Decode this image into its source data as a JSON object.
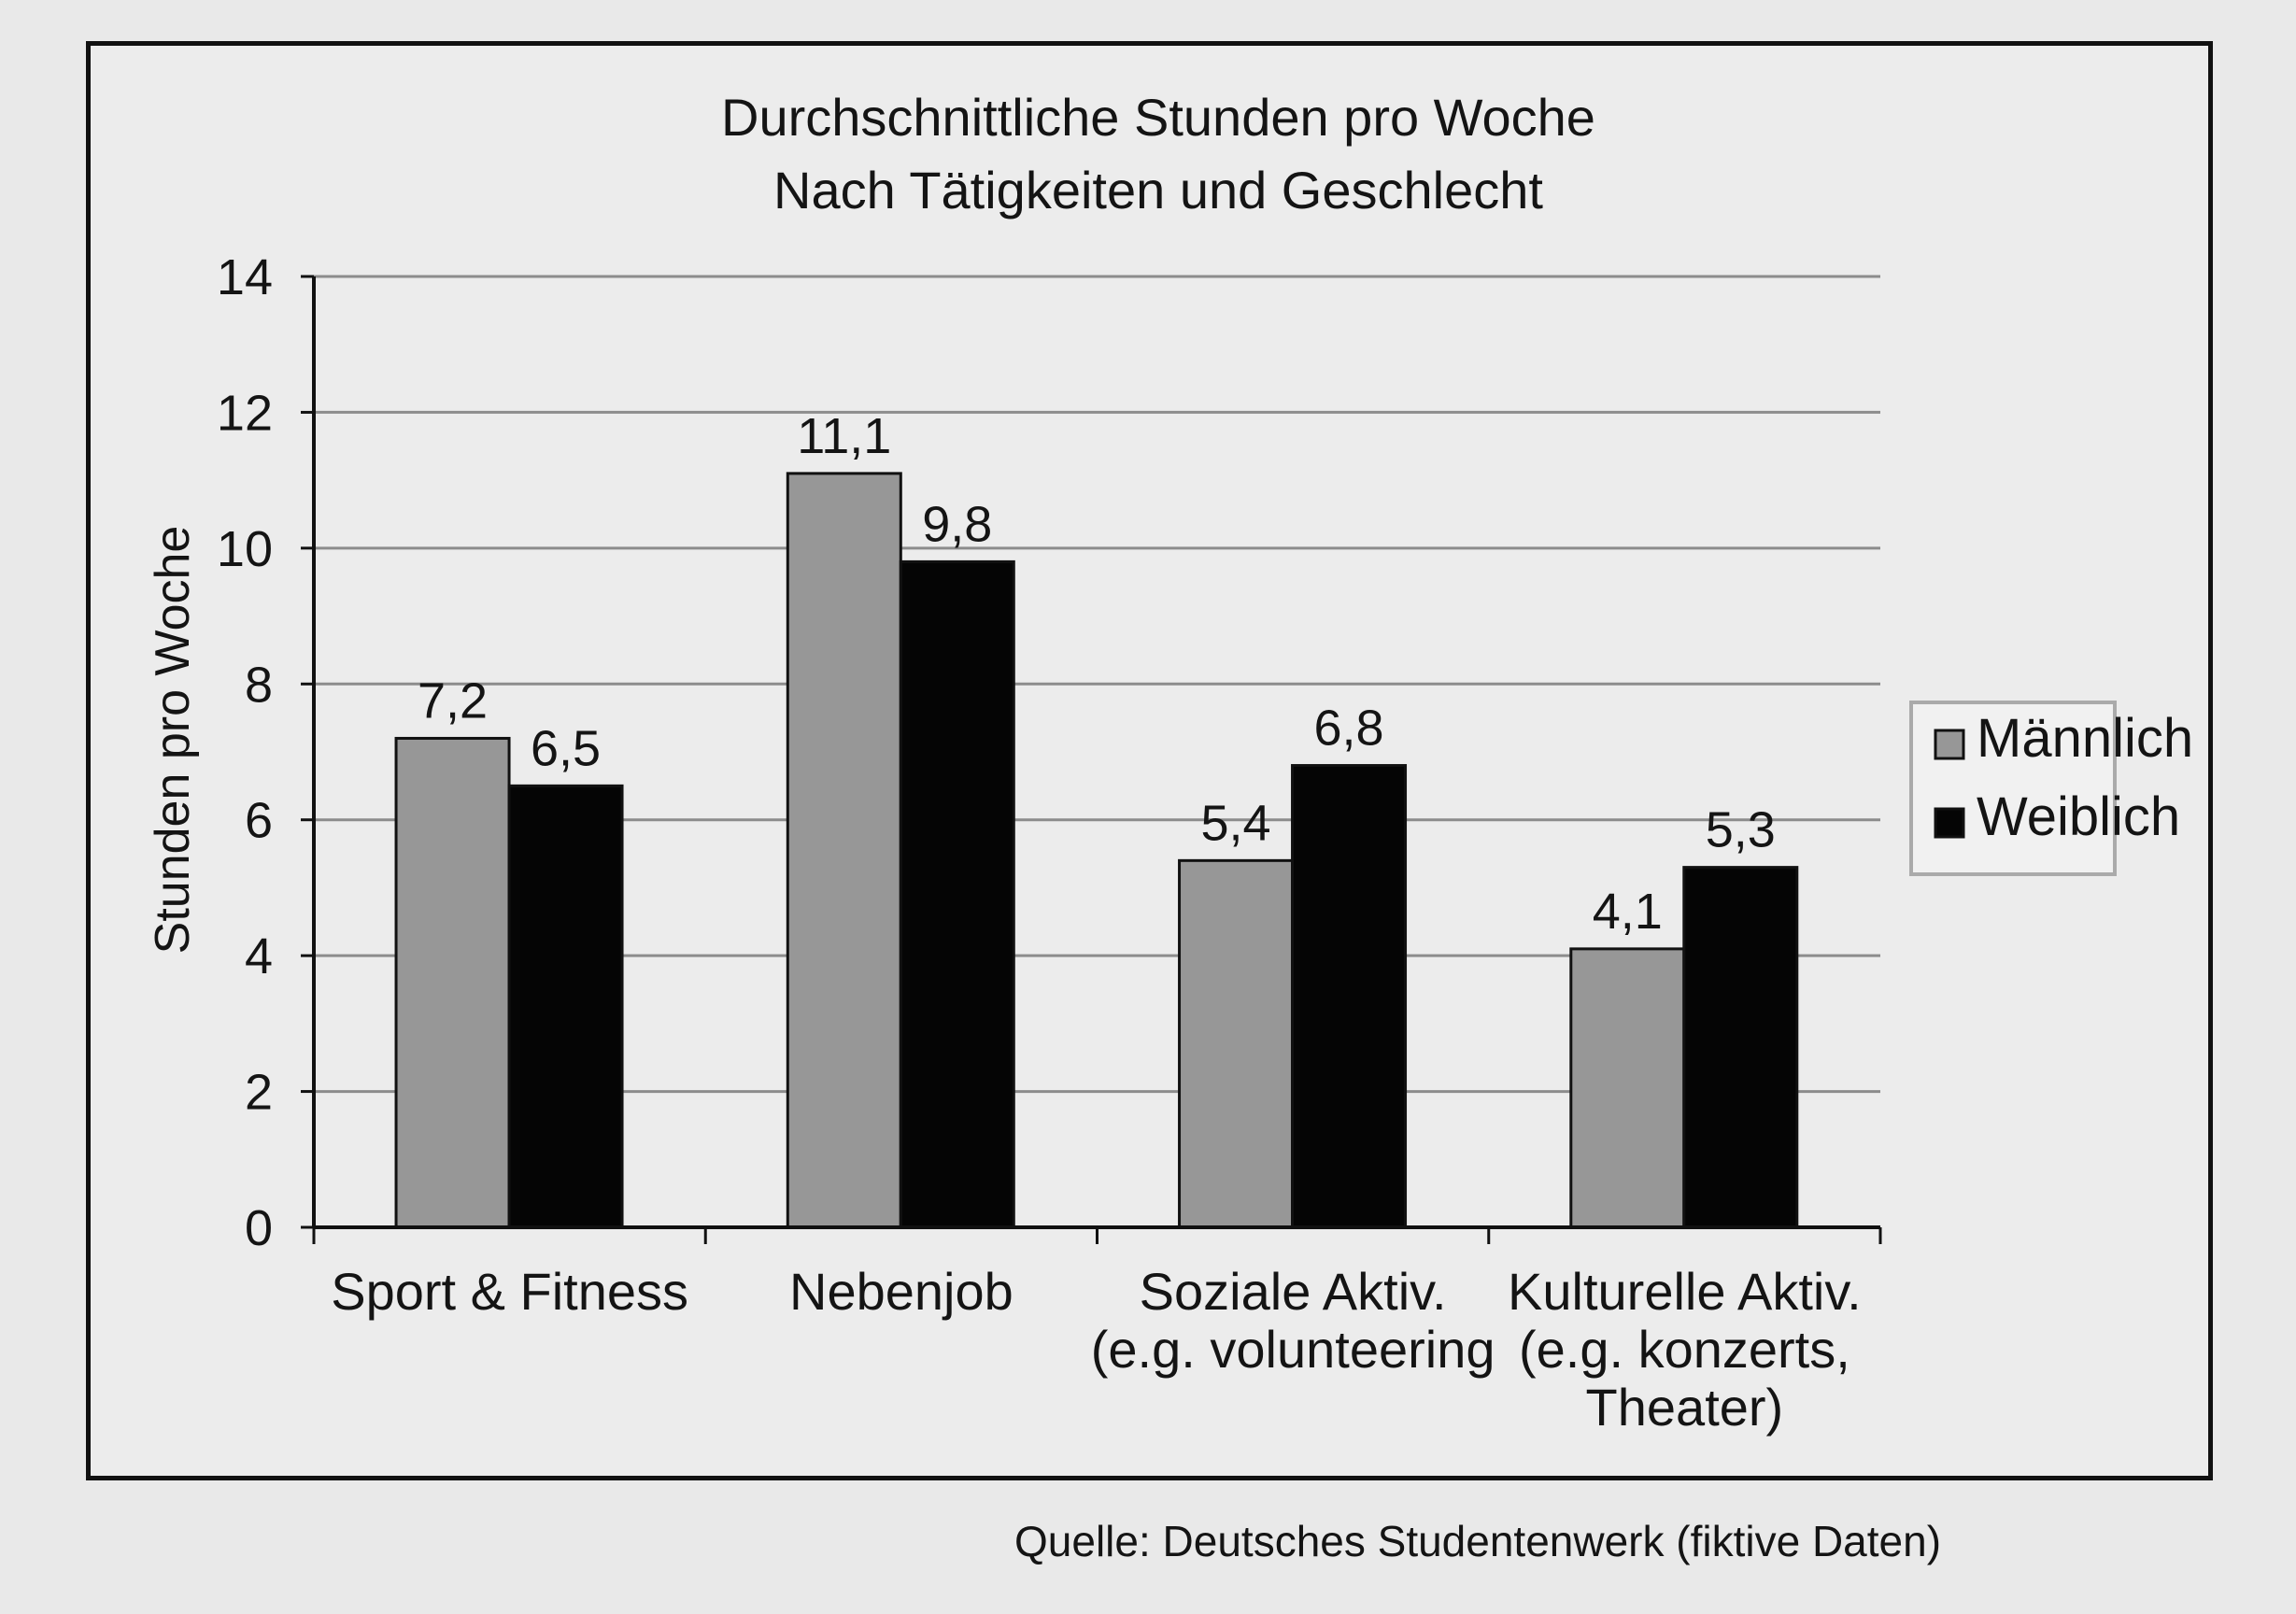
{
  "chart_data": {
    "type": "bar",
    "title": [
      "Durchschnittliche Stunden pro Woche",
      "Nach Tätigkeiten und Geschlecht"
    ],
    "ylabel": "Stunden pro Woche",
    "xlabel": "",
    "ylim": [
      0,
      14
    ],
    "yticks": [
      0,
      2,
      4,
      6,
      8,
      10,
      12,
      14
    ],
    "grid": true,
    "legend_position": "right",
    "categories": [
      [
        "Sport & Fitness"
      ],
      [
        "Nebenjob"
      ],
      [
        "Soziale Aktiv.",
        "(e.g. volunteering"
      ],
      [
        "Kulturelle Aktiv.",
        "(e.g. konzerts,",
        "Theater)"
      ]
    ],
    "series": [
      {
        "name": "Männlich",
        "values": [
          7.2,
          11.1,
          5.4,
          4.1
        ],
        "labels": [
          "7,2",
          "11,1",
          "5,4",
          "4,1"
        ],
        "color": "#979797"
      },
      {
        "name": "Weiblich",
        "values": [
          6.5,
          9.8,
          6.8,
          5.3
        ],
        "labels": [
          "6,5",
          "9,8",
          "6,8",
          "5,3"
        ],
        "color": "#050505"
      }
    ],
    "source": "Quelle: Deutsches Studentenwerk (fiktive Daten)"
  }
}
